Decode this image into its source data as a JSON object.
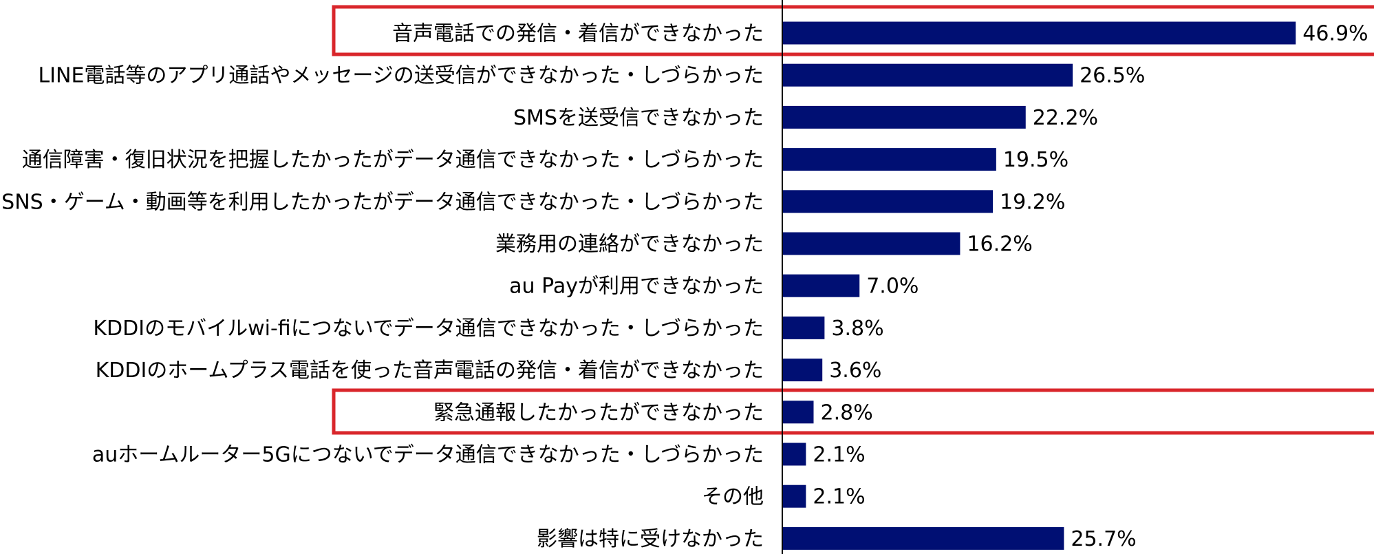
{
  "chart_data": {
    "type": "bar",
    "orientation": "horizontal",
    "categories": [
      "音声電話での発信・着信ができなかった",
      "LINE電話等のアプリ通話やメッセージの送受信ができなかった・しづらかった",
      "SMSを送受信できなかった",
      "通信障害・復旧状況を把握したかったがデータ通信できなかった・しづらかった",
      "SNS・ゲーム・動画等を利用したかったがデータ通信できなかった・しづらかった",
      "業務用の連絡ができなかった",
      "au Payが利用できなかった",
      "KDDIのモバイルwi-fiにつないでデータ通信できなかった・しづらかった",
      "KDDIのホームプラス電話を使った音声電話の発信・着信ができなかった",
      "緊急通報したかったができなかった",
      "auホームルーター5Gにつないでデータ通信できなかった・しづらかった",
      "その他",
      "影響は特に受けなかった"
    ],
    "values": [
      46.9,
      26.5,
      22.2,
      19.5,
      19.2,
      16.2,
      7.0,
      3.8,
      3.6,
      2.8,
      2.1,
      2.1,
      25.7
    ],
    "value_labels": [
      "46.9%",
      "26.5%",
      "22.2%",
      "19.5%",
      "19.2%",
      "16.2%",
      "7.0%",
      "3.8%",
      "3.6%",
      "2.8%",
      "2.1%",
      "2.1%",
      "25.7%"
    ],
    "color": "#000f73"
  }
}
